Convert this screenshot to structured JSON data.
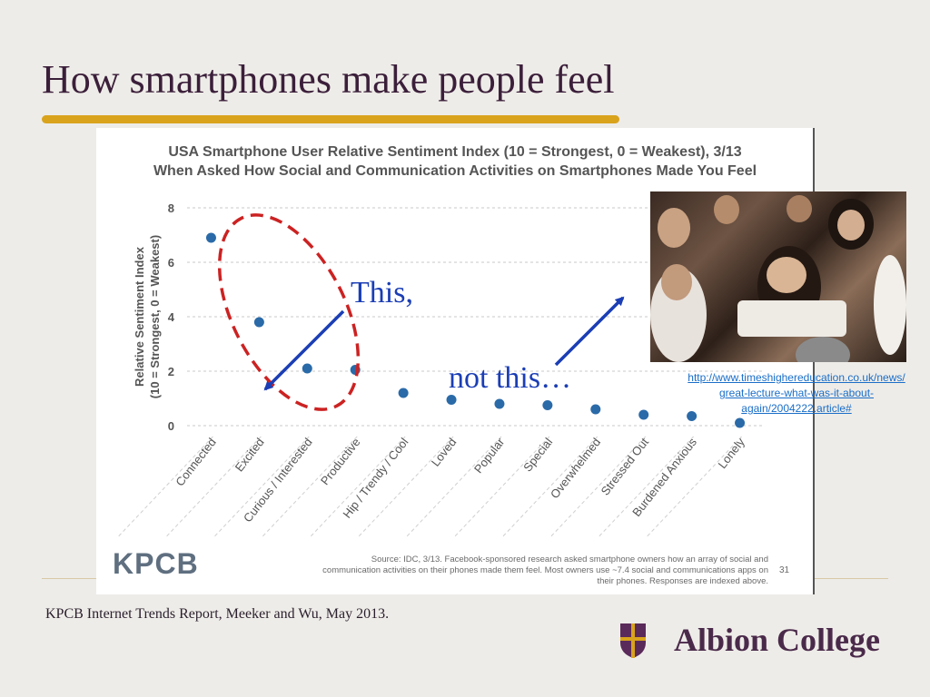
{
  "slide": {
    "title": "How smartphones make people feel",
    "footer_citation": "KPCB Internet Trends Report, Meeker and Wu, May 2013.",
    "brand_name": "Albion College",
    "colors": {
      "title": "#3b1f3a",
      "accent_rule": "#d9a31c",
      "callout": "#1b3eb5",
      "ellipse": "#cc2222"
    }
  },
  "callouts": {
    "this": "This,",
    "not_this": "not this…"
  },
  "photo": {
    "link_lines": [
      "http://www.timeshighereducation.co.uk/news/",
      "great-lecture-what-was-it-about-",
      "again/2004222.article#"
    ]
  },
  "chart_source": {
    "logo": "KPCB",
    "source_lines": [
      "Source: IDC, 3/13. Facebook-sponsored research asked smartphone owners how an array of social and",
      "communication activities on their phones made them feel. Most owners use ~7.4 social and communications apps on",
      "their phones. Responses are indexed above."
    ],
    "page_number": "31"
  },
  "chart_data": {
    "type": "scatter",
    "title": [
      "USA Smartphone User Relative Sentiment Index (10 = Strongest, 0 = Weakest), 3/13",
      "When Asked How Social and Communication Activities on Smartphones Made You Feel"
    ],
    "ylabel": [
      "Relative Sentiment Index",
      "(10 = Strongest, 0 = Weakest)"
    ],
    "ylim": [
      0,
      8
    ],
    "yticks": [
      0,
      2,
      4,
      6,
      8
    ],
    "grid": true,
    "categories": [
      "Connected",
      "Excited",
      "Curious / Interested",
      "Productive",
      "Hip / Trendy / Cool",
      "Loved",
      "Popular",
      "Special",
      "Overwhelmed",
      "Stressed Out",
      "Burdened Anxious",
      "Lonely"
    ],
    "values": [
      6.9,
      3.8,
      2.1,
      2.05,
      1.2,
      0.95,
      0.8,
      0.75,
      0.6,
      0.4,
      0.35,
      0.1
    ],
    "point_color": "#2a6aa8"
  }
}
